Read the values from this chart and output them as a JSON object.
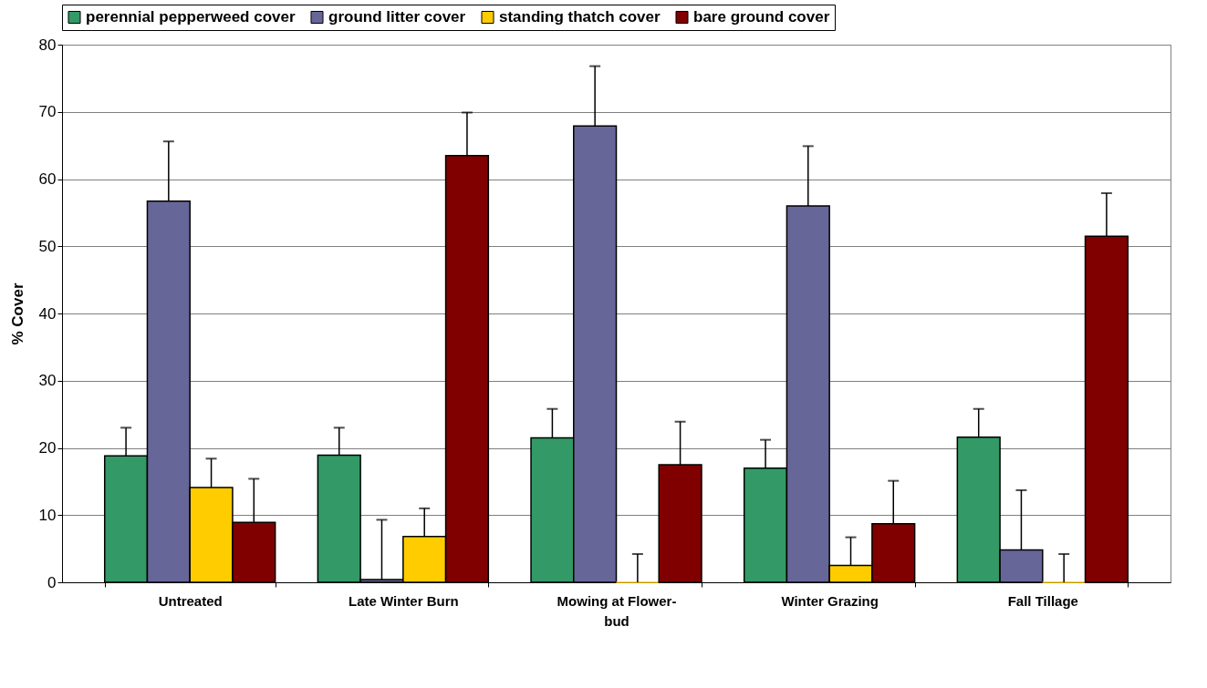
{
  "chart_data": {
    "type": "bar",
    "ylabel": "% Cover",
    "categories": [
      "Untreated",
      "Late Winter Burn",
      "Mowing at Flower-bud",
      "Winter Grazing",
      "Fall Tillage"
    ],
    "series": [
      {
        "name": "perennial pepperweed cover",
        "color": "#339966",
        "values": [
          18.8,
          18.9,
          21.5,
          17.0,
          21.6
        ],
        "errors": [
          [
            18.8,
            23.0
          ],
          [
            18.9,
            23.0
          ],
          [
            21.5,
            25.8
          ],
          [
            17.0,
            21.2
          ],
          [
            21.6,
            25.8
          ]
        ]
      },
      {
        "name": "ground litter cover",
        "color": "#666699",
        "values": [
          56.7,
          0.4,
          67.9,
          56.0,
          4.8
        ],
        "errors": [
          [
            56.7,
            65.6
          ],
          [
            0.4,
            9.3
          ],
          [
            67.9,
            76.8
          ],
          [
            56.0,
            64.9
          ],
          [
            4.8,
            13.7
          ]
        ]
      },
      {
        "name": "standing thatch cover",
        "color": "#ffcc00",
        "values": [
          14.1,
          6.8,
          0,
          2.5,
          0
        ],
        "errors": [
          [
            14.1,
            18.4
          ],
          [
            6.8,
            11.0
          ],
          [
            0,
            4.2
          ],
          [
            2.5,
            6.7
          ],
          [
            0,
            4.2
          ]
        ]
      },
      {
        "name": "bare ground cover",
        "color": "#800000",
        "values": [
          8.9,
          63.5,
          17.5,
          8.7,
          51.5
        ],
        "errors": [
          [
            8.9,
            15.4
          ],
          [
            63.5,
            69.9
          ],
          [
            17.5,
            23.9
          ],
          [
            8.7,
            15.1
          ],
          [
            51.5,
            57.9
          ]
        ]
      }
    ],
    "ylim": [
      0,
      80
    ],
    "yticks": [
      0,
      10,
      20,
      30,
      40,
      50,
      60,
      70,
      80
    ],
    "grid": "y",
    "legend": "top"
  }
}
